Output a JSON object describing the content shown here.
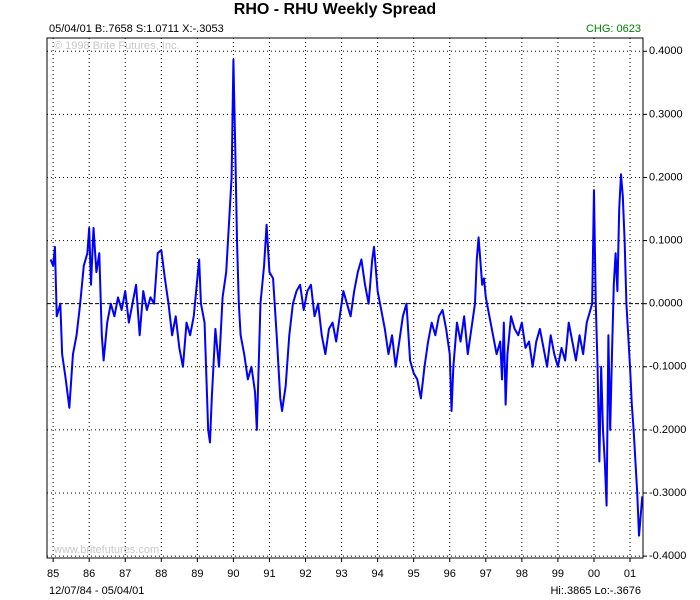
{
  "chart_data": {
    "type": "line",
    "title": "RHO - RHU Weekly Spread",
    "header_left": "05/04/01 B:.7658 S:1.0711 X:-.3053",
    "header_right": "CHG: 0623",
    "copyright": "© 1998 Brite Futures, Inc.",
    "website": "www.britefutures.com",
    "date_range": "12/07/84 - 05/04/01",
    "hi_lo": "Hi:.3865 Lo:-.3676",
    "color": "#0000ff",
    "grid": true,
    "xlim": [
      1984.83,
      2001.36
    ],
    "ylim": [
      -0.403,
      0.421
    ],
    "xticks": [
      {
        "value": 1985,
        "label": "85"
      },
      {
        "value": 1986,
        "label": "86"
      },
      {
        "value": 1987,
        "label": "87"
      },
      {
        "value": 1988,
        "label": "88"
      },
      {
        "value": 1989,
        "label": "89"
      },
      {
        "value": 1990,
        "label": "90"
      },
      {
        "value": 1991,
        "label": "91"
      },
      {
        "value": 1992,
        "label": "92"
      },
      {
        "value": 1993,
        "label": "93"
      },
      {
        "value": 1994,
        "label": "94"
      },
      {
        "value": 1995,
        "label": "95"
      },
      {
        "value": 1996,
        "label": "96"
      },
      {
        "value": 1997,
        "label": "97"
      },
      {
        "value": 1998,
        "label": "98"
      },
      {
        "value": 1999,
        "label": "99"
      },
      {
        "value": 2000,
        "label": "00"
      },
      {
        "value": 2001,
        "label": "01"
      }
    ],
    "yticks": [
      {
        "value": 0.4,
        "label": "0.4000"
      },
      {
        "value": 0.3,
        "label": "0.3000"
      },
      {
        "value": 0.2,
        "label": "0.2000"
      },
      {
        "value": 0.1,
        "label": "0.1000"
      },
      {
        "value": 0,
        "label": "0.0000"
      },
      {
        "value": -0.1,
        "label": "-0.1000"
      },
      {
        "value": -0.2,
        "label": "-0.2000"
      },
      {
        "value": -0.3,
        "label": "-0.3000"
      },
      {
        "value": -0.4,
        "label": "-0.4000"
      }
    ],
    "x": [
      1984.93,
      1985.0,
      1985.05,
      1985.1,
      1985.2,
      1985.25,
      1985.35,
      1985.45,
      1985.55,
      1985.65,
      1985.75,
      1985.85,
      1985.95,
      1986.0,
      1986.05,
      1986.12,
      1986.2,
      1986.28,
      1986.35,
      1986.4,
      1986.5,
      1986.6,
      1986.7,
      1986.8,
      1986.9,
      1987.0,
      1987.1,
      1987.2,
      1987.3,
      1987.4,
      1987.5,
      1987.6,
      1987.7,
      1987.8,
      1987.9,
      1988.0,
      1988.1,
      1988.2,
      1988.3,
      1988.4,
      1988.5,
      1988.6,
      1988.7,
      1988.8,
      1988.9,
      1989.0,
      1989.05,
      1989.1,
      1989.2,
      1989.3,
      1989.35,
      1989.4,
      1989.5,
      1989.6,
      1989.7,
      1989.8,
      1989.85,
      1989.9,
      1989.95,
      1990.0,
      1990.05,
      1990.1,
      1990.15,
      1990.2,
      1990.3,
      1990.4,
      1990.5,
      1990.6,
      1990.65,
      1990.7,
      1990.75,
      1990.85,
      1990.92,
      1991.0,
      1991.1,
      1991.2,
      1991.3,
      1991.35,
      1991.45,
      1991.55,
      1991.65,
      1991.75,
      1991.85,
      1991.95,
      1992.05,
      1992.15,
      1992.25,
      1992.35,
      1992.45,
      1992.55,
      1992.65,
      1992.75,
      1992.85,
      1992.95,
      1993.05,
      1993.15,
      1993.25,
      1993.35,
      1993.45,
      1993.55,
      1993.65,
      1993.75,
      1993.85,
      1993.9,
      1994.0,
      1994.1,
      1994.2,
      1994.3,
      1994.4,
      1994.5,
      1994.6,
      1994.7,
      1994.8,
      1994.9,
      1995.0,
      1995.1,
      1995.2,
      1995.3,
      1995.4,
      1995.5,
      1995.6,
      1995.7,
      1995.8,
      1995.9,
      1996.0,
      1996.05,
      1996.1,
      1996.2,
      1996.3,
      1996.4,
      1996.5,
      1996.6,
      1996.7,
      1996.75,
      1996.8,
      1996.9,
      1996.95,
      1997.0,
      1997.1,
      1997.2,
      1997.3,
      1997.4,
      1997.45,
      1997.5,
      1997.55,
      1997.6,
      1997.7,
      1997.8,
      1997.9,
      1998.0,
      1998.1,
      1998.2,
      1998.3,
      1998.4,
      1998.5,
      1998.6,
      1998.7,
      1998.8,
      1998.9,
      1999.0,
      1999.1,
      1999.2,
      1999.3,
      1999.4,
      1999.5,
      1999.6,
      1999.7,
      1999.8,
      1999.9,
      1999.95,
      2000.0,
      2000.05,
      2000.1,
      2000.15,
      2000.2,
      2000.25,
      2000.3,
      2000.35,
      2000.4,
      2000.45,
      2000.5,
      2000.55,
      2000.6,
      2000.65,
      2000.7,
      2000.75,
      2000.8,
      2000.85,
      2000.9,
      2000.95,
      2001.0,
      2001.05,
      2001.1,
      2001.15,
      2001.2,
      2001.25,
      2001.34
    ],
    "values": [
      0.07,
      0.06,
      0.09,
      -0.02,
      0.0,
      -0.08,
      -0.12,
      -0.165,
      -0.08,
      -0.05,
      0.0,
      0.06,
      0.08,
      0.12,
      0.03,
      0.12,
      0.05,
      0.08,
      -0.05,
      -0.09,
      -0.03,
      0.0,
      -0.02,
      0.01,
      -0.01,
      0.02,
      -0.03,
      0.0,
      0.03,
      -0.05,
      0.02,
      -0.01,
      0.01,
      0.0,
      0.08,
      0.085,
      0.04,
      0.0,
      -0.05,
      -0.02,
      -0.07,
      -0.1,
      -0.03,
      -0.05,
      -0.02,
      0.04,
      0.07,
      0.0,
      -0.03,
      -0.2,
      -0.22,
      -0.15,
      -0.04,
      -0.1,
      0.01,
      0.05,
      0.1,
      0.15,
      0.2,
      0.3865,
      0.25,
      0.1,
      0.0,
      -0.05,
      -0.08,
      -0.12,
      -0.1,
      -0.14,
      -0.2,
      -0.1,
      0.0,
      0.06,
      0.125,
      0.05,
      0.04,
      -0.05,
      -0.15,
      -0.17,
      -0.13,
      -0.05,
      0.0,
      0.02,
      0.03,
      -0.01,
      0.02,
      0.03,
      -0.02,
      0.0,
      -0.05,
      -0.08,
      -0.04,
      -0.03,
      -0.06,
      -0.02,
      0.02,
      0.0,
      -0.02,
      0.02,
      0.05,
      0.07,
      0.03,
      0.0,
      0.07,
      0.09,
      0.02,
      -0.01,
      -0.04,
      -0.08,
      -0.05,
      -0.1,
      -0.06,
      -0.02,
      0.0,
      -0.09,
      -0.11,
      -0.12,
      -0.15,
      -0.1,
      -0.06,
      -0.03,
      -0.05,
      -0.02,
      -0.01,
      -0.04,
      -0.08,
      -0.17,
      -0.1,
      -0.03,
      -0.06,
      -0.02,
      -0.08,
      -0.04,
      0.0,
      0.07,
      0.105,
      0.03,
      0.04,
      0.01,
      -0.02,
      -0.05,
      -0.08,
      -0.06,
      -0.12,
      -0.03,
      -0.16,
      -0.08,
      -0.02,
      -0.04,
      -0.05,
      -0.03,
      -0.07,
      -0.06,
      -0.1,
      -0.06,
      -0.04,
      -0.07,
      -0.1,
      -0.05,
      -0.08,
      -0.1,
      -0.07,
      -0.09,
      -0.03,
      -0.06,
      -0.09,
      -0.05,
      -0.08,
      -0.03,
      -0.01,
      0.0,
      0.18,
      0.0,
      -0.1,
      -0.25,
      -0.1,
      -0.2,
      -0.25,
      -0.32,
      -0.05,
      -0.2,
      -0.08,
      0.03,
      0.08,
      0.02,
      0.15,
      0.205,
      0.17,
      0.1,
      0.0,
      -0.05,
      -0.1,
      -0.16,
      -0.2,
      -0.25,
      -0.3,
      -0.3676,
      -0.3053
    ]
  }
}
